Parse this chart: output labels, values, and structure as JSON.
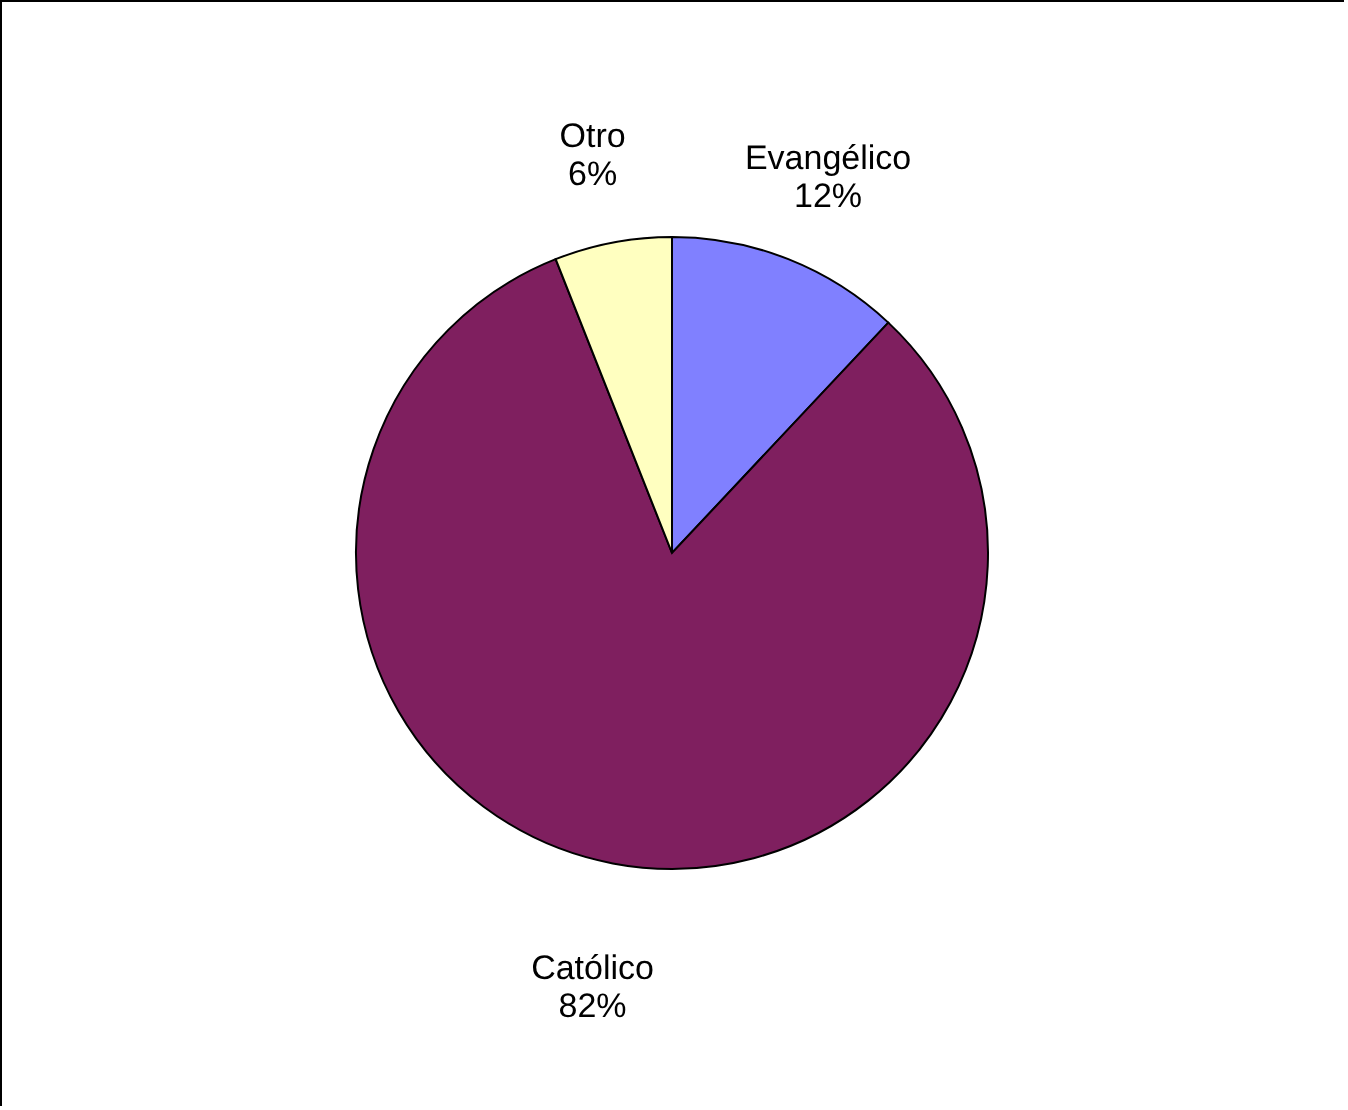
{
  "chart_data": {
    "type": "pie",
    "categories": [
      "Evangélico",
      "Católico",
      "Otro"
    ],
    "values": [
      12,
      82,
      6
    ],
    "value_labels": [
      "12%",
      "82%",
      "6%"
    ],
    "colors": [
      "#8080ff",
      "#7f1f5f",
      "#ffffc0"
    ]
  }
}
